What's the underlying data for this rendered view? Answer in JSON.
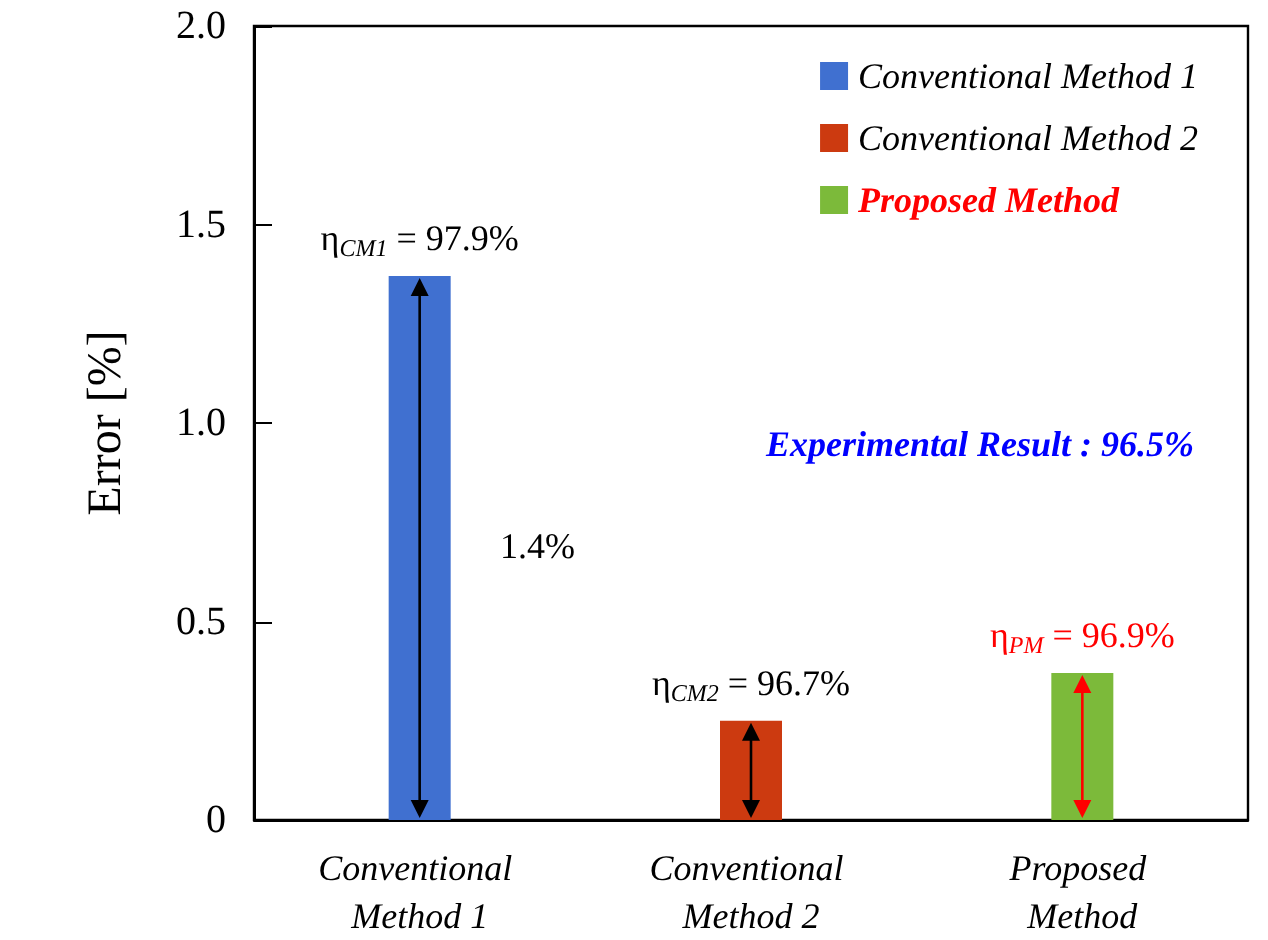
{
  "chart_data": {
    "type": "bar",
    "ylabel": "Error [%]",
    "categories": [
      "Conventional Method 1",
      "Conventional Method 2",
      "Proposed Method"
    ],
    "series": [
      {
        "name": "Conventional Method 1",
        "color": "#4070d0",
        "values": [
          1.37,
          null,
          null
        ]
      },
      {
        "name": "Conventional Method 2",
        "color": "#cc3a10",
        "values": [
          null,
          0.25,
          null
        ]
      },
      {
        "name": "Proposed Method",
        "color": "#7cba3a",
        "values": [
          null,
          null,
          0.37
        ]
      }
    ],
    "ylim": [
      0,
      2
    ],
    "yticks": [
      0,
      0.5,
      {
        "value": 1,
        "label": "1.0"
      },
      1.5,
      {
        "value": 2,
        "label": "2.0"
      }
    ],
    "annotations": [
      {
        "text": "η$_{CM1}$ = 97.9%",
        "x": "Conventional Method 1",
        "y": 1.37
      },
      "1.4%",
      {
        "text": "η$_{CM2}$ = 96.7%",
        "x": "Conventional Method 2",
        "y": 0.25
      },
      {
        "text": "η$_{PM}$ = 96.9%",
        "x": "Proposed Method",
        "y": 0.37
      },
      "Experimental Result : 96.5%"
    ],
    "grid": false,
    "legend": "top right"
  }
}
